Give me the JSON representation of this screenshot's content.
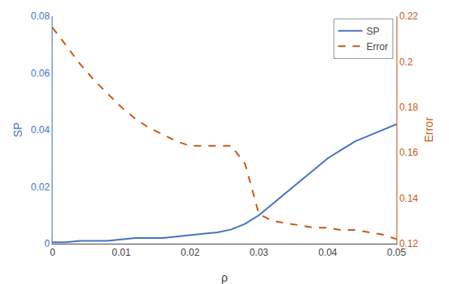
{
  "chart_data": {
    "type": "line",
    "xlabel": "ρ",
    "ylabel": "SP",
    "y2label": "Error",
    "x": [
      0.0,
      0.002,
      0.004,
      0.006,
      0.008,
      0.01,
      0.012,
      0.014,
      0.016,
      0.018,
      0.02,
      0.022,
      0.024,
      0.026,
      0.028,
      0.03,
      0.032,
      0.034,
      0.036,
      0.038,
      0.04,
      0.042,
      0.044,
      0.046,
      0.048,
      0.05
    ],
    "series": [
      {
        "name": "SP",
        "color": "#4472C4",
        "line_style": "solid",
        "values": [
          0.0005,
          0.0005,
          0.001,
          0.001,
          0.001,
          0.0015,
          0.002,
          0.002,
          0.002,
          0.0025,
          0.003,
          0.0035,
          0.004,
          0.005,
          0.007,
          0.01,
          0.014,
          0.018,
          0.022,
          0.026,
          0.03,
          0.033,
          0.036,
          0.038,
          0.04,
          0.042
        ]
      },
      {
        "name": "Error",
        "color": "#C55A11",
        "line_style": "dashed",
        "axis": "y2",
        "values": [
          0.215,
          0.207,
          0.199,
          0.192,
          0.186,
          0.18,
          0.175,
          0.171,
          0.168,
          0.165,
          0.163,
          0.163,
          0.163,
          0.163,
          0.155,
          0.133,
          0.13,
          0.129,
          0.128,
          0.127,
          0.127,
          0.126,
          0.126,
          0.125,
          0.124,
          0.122
        ]
      }
    ],
    "xlim": [
      0.0,
      0.05
    ],
    "xticks": [
      0.0,
      0.01,
      0.02,
      0.03,
      0.04,
      0.05
    ],
    "ylim": [
      0.0,
      0.08
    ],
    "yticks": [
      0.0,
      0.02,
      0.04,
      0.06,
      0.08
    ],
    "y2lim": [
      0.12,
      0.22
    ],
    "y2ticks": [
      0.12,
      0.14,
      0.16,
      0.18,
      0.2,
      0.22
    ],
    "grid": false,
    "legend": "upper right"
  }
}
